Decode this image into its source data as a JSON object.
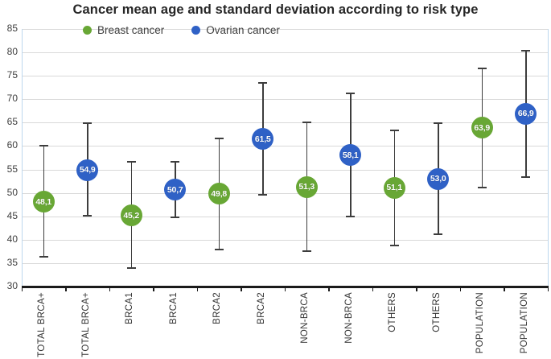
{
  "title": "Cancer mean age and standard deviation according to risk type",
  "legend": {
    "position": "top-left-inside",
    "items": [
      {
        "label": "Breast cancer",
        "color": "#68a735"
      },
      {
        "label": "Ovarian cancer",
        "color": "#2f61c6"
      }
    ]
  },
  "colors": {
    "breast_marker": "#68a735",
    "ovarian_marker": "#2f61c6",
    "error_bar": "#3d3d3d",
    "gridline": "#d9d9d9",
    "axis_line": "#1a1a1a",
    "plot_side_border": "#bdd7ee",
    "title_text": "#262626",
    "tick_text": "#404040",
    "marker_label_text": "#ffffff",
    "background": "#ffffff"
  },
  "chart_data": {
    "type": "scatter",
    "subtype": "mean-with-error-bars",
    "title": "Cancer mean age and standard deviation according to risk type",
    "xlabel": "",
    "ylabel": "",
    "ylim": [
      30,
      85
    ],
    "yticks": [
      30,
      35,
      40,
      45,
      50,
      55,
      60,
      65,
      70,
      75,
      80,
      85
    ],
    "grid": true,
    "legend_position": "top-left-inside",
    "decimal_separator": ",",
    "series_names": [
      "Breast cancer",
      "Ovarian cancer"
    ],
    "series_colors": {
      "Breast cancer": "#68a735",
      "Ovarian cancer": "#2f61c6"
    },
    "categories": [
      "TOTAL BRCA+",
      "TOTAL BRCA+",
      "BRCA1",
      "BRCA1",
      "BRCA2",
      "BRCA2",
      "NON-BRCA",
      "NON-BRCA",
      "OTHERS",
      "OTHERS",
      "POPULATION",
      "POPULATION"
    ],
    "points": [
      {
        "category": "TOTAL BRCA+",
        "series": "Breast cancer",
        "label": "48,1",
        "mean": 48.1,
        "upper": 60.0,
        "lower": 36.4
      },
      {
        "category": "TOTAL BRCA+",
        "series": "Ovarian cancer",
        "label": "54,9",
        "mean": 54.9,
        "upper": 64.9,
        "lower": 45.2
      },
      {
        "category": "BRCA1",
        "series": "Breast cancer",
        "label": "45,2",
        "mean": 45.2,
        "upper": 56.6,
        "lower": 33.9
      },
      {
        "category": "BRCA1",
        "series": "Ovarian cancer",
        "label": "50,7",
        "mean": 50.7,
        "upper": 56.7,
        "lower": 44.7
      },
      {
        "category": "BRCA2",
        "series": "Breast cancer",
        "label": "49,8",
        "mean": 49.8,
        "upper": 61.7,
        "lower": 37.9
      },
      {
        "category": "BRCA2",
        "series": "Ovarian cancer",
        "label": "61,5",
        "mean": 61.5,
        "upper": 73.4,
        "lower": 49.6
      },
      {
        "category": "NON-BRCA",
        "series": "Breast cancer",
        "label": "51,3",
        "mean": 51.3,
        "upper": 65.0,
        "lower": 37.5
      },
      {
        "category": "NON-BRCA",
        "series": "Ovarian cancer",
        "label": "58,1",
        "mean": 58.1,
        "upper": 71.2,
        "lower": 45.0
      },
      {
        "category": "OTHERS",
        "series": "Breast cancer",
        "label": "51,1",
        "mean": 51.1,
        "upper": 63.4,
        "lower": 38.8
      },
      {
        "category": "OTHERS",
        "series": "Ovarian cancer",
        "label": "53,0",
        "mean": 53.0,
        "upper": 64.9,
        "lower": 41.2
      },
      {
        "category": "POPULATION",
        "series": "Breast cancer",
        "label": "63,9",
        "mean": 63.9,
        "upper": 76.6,
        "lower": 51.2
      },
      {
        "category": "POPULATION",
        "series": "Ovarian cancer",
        "label": "66,9",
        "mean": 66.9,
        "upper": 80.4,
        "lower": 53.4
      }
    ]
  }
}
